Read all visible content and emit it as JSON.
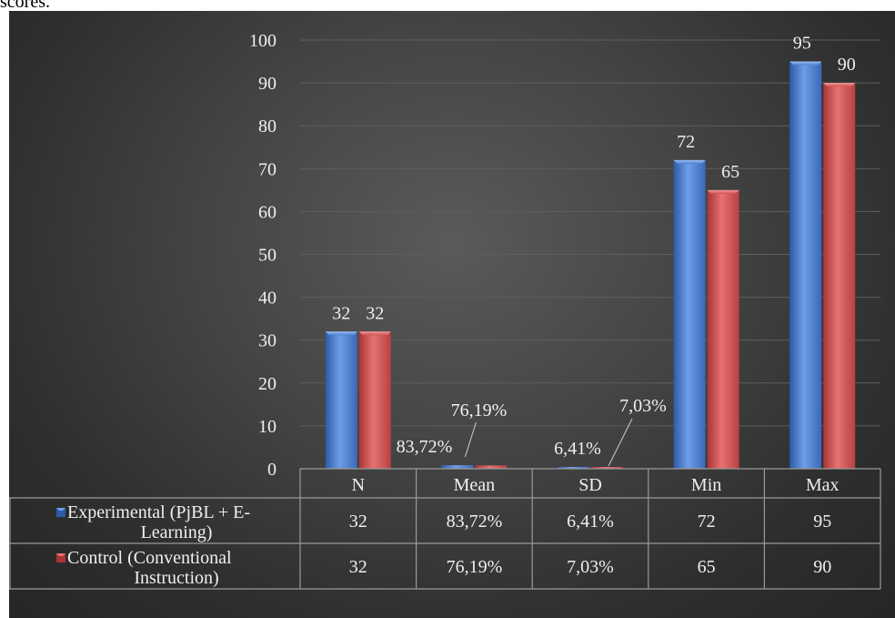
{
  "caption_fragment": "scores.",
  "chart_data": {
    "type": "bar",
    "title": "",
    "xlabel": "",
    "ylabel": "",
    "categories": [
      "N",
      "Mean",
      "SD",
      "Min",
      "Max"
    ],
    "ylim": [
      0,
      100
    ],
    "yticks": [
      0,
      10,
      20,
      30,
      40,
      50,
      60,
      70,
      80,
      90,
      100
    ],
    "grid": true,
    "legend_placement": "data-table-left",
    "series": [
      {
        "name": "Experimental (PjBL + E-Learning)",
        "values": [
          32,
          0.8372,
          0.0641,
          72,
          95
        ],
        "labels": [
          "32",
          "83,72%",
          "6,41%",
          "72",
          "95"
        ],
        "color": "#4a7fd0"
      },
      {
        "name": "Control (Conventional Instruction)",
        "values": [
          32,
          0.7619,
          0.0703,
          65,
          90
        ],
        "labels": [
          "32",
          "76,19%",
          "7,03%",
          "65",
          "90"
        ],
        "color": "#d05050"
      }
    ],
    "data_table": {
      "rows": [
        {
          "legend_line1": "Experimental (PjBL + E-",
          "legend_line2": "Learning)",
          "cells": [
            "32",
            "83,72%",
            "6,41%",
            "72",
            "95"
          ]
        },
        {
          "legend_line1": "Control (Conventional",
          "legend_line2": "Instruction)",
          "cells": [
            "32",
            "76,19%",
            "7,03%",
            "65",
            "90"
          ]
        }
      ]
    }
  }
}
